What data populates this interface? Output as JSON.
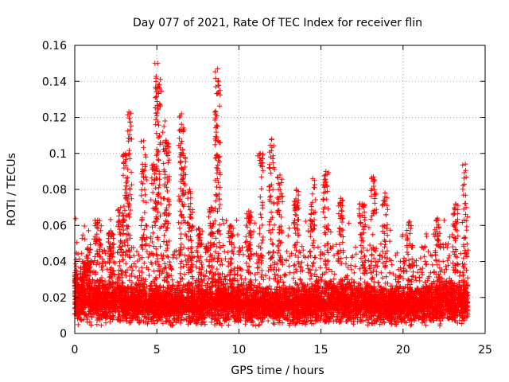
{
  "chart_data": {
    "type": "scatter",
    "title": "Day 077 of 2021, Rate Of TEC Index for receiver flin",
    "xlabel": "GPS time / hours",
    "ylabel": "ROTI / TECUs",
    "xlim": [
      0,
      25
    ],
    "ylim": [
      0,
      0.16
    ],
    "x_ticks": [
      "0",
      "5",
      "10",
      "15",
      "20",
      "25"
    ],
    "y_ticks": [
      "0",
      "0.02",
      "0.04",
      "0.06",
      "0.08",
      "0.1",
      "0.12",
      "0.14",
      "0.16"
    ],
    "grid": true,
    "marker": "+",
    "color": "#ff0000",
    "n_points": 7000,
    "peaks": [
      {
        "x": 0.05,
        "y": 0.035
      },
      {
        "x": 0.5,
        "y": 0.04
      },
      {
        "x": 0.8,
        "y": 0.047
      },
      {
        "x": 1.4,
        "y": 0.063
      },
      {
        "x": 2.2,
        "y": 0.057
      },
      {
        "x": 2.8,
        "y": 0.07
      },
      {
        "x": 3.3,
        "y": 0.123
      },
      {
        "x": 3.1,
        "y": 0.1
      },
      {
        "x": 4.2,
        "y": 0.107
      },
      {
        "x": 4.8,
        "y": 0.094
      },
      {
        "x": 5.05,
        "y": 0.15
      },
      {
        "x": 5.1,
        "y": 0.138
      },
      {
        "x": 5.5,
        "y": 0.118
      },
      {
        "x": 5.6,
        "y": 0.106
      },
      {
        "x": 6.5,
        "y": 0.122
      },
      {
        "x": 6.6,
        "y": 0.1
      },
      {
        "x": 7.0,
        "y": 0.08
      },
      {
        "x": 7.6,
        "y": 0.058
      },
      {
        "x": 8.7,
        "y": 0.147
      },
      {
        "x": 8.7,
        "y": 0.115
      },
      {
        "x": 8.3,
        "y": 0.07
      },
      {
        "x": 9.5,
        "y": 0.06
      },
      {
        "x": 10.6,
        "y": 0.068
      },
      {
        "x": 11.3,
        "y": 0.1
      },
      {
        "x": 12.0,
        "y": 0.108
      },
      {
        "x": 12.5,
        "y": 0.088
      },
      {
        "x": 13.5,
        "y": 0.08
      },
      {
        "x": 14.5,
        "y": 0.086
      },
      {
        "x": 15.3,
        "y": 0.09
      },
      {
        "x": 16.2,
        "y": 0.075
      },
      {
        "x": 17.5,
        "y": 0.072
      },
      {
        "x": 18.2,
        "y": 0.087
      },
      {
        "x": 18.9,
        "y": 0.078
      },
      {
        "x": 20.4,
        "y": 0.062
      },
      {
        "x": 22.1,
        "y": 0.064
      },
      {
        "x": 23.2,
        "y": 0.072
      },
      {
        "x": 23.8,
        "y": 0.094
      }
    ]
  }
}
